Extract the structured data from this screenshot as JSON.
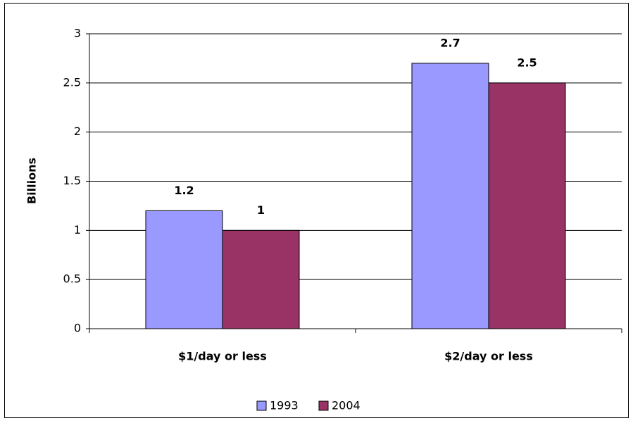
{
  "chart_data": {
    "type": "bar",
    "y_label": "Billions",
    "categories": [
      "$1/day or less",
      "$2/day or less"
    ],
    "series": [
      {
        "name": "1993",
        "color": "#9999ff",
        "values": [
          1.2,
          2.7
        ]
      },
      {
        "name": "2004",
        "color": "#993366",
        "values": [
          1,
          2.5
        ]
      }
    ],
    "ylim": [
      0,
      3
    ],
    "yticks": [
      0,
      0.5,
      1,
      1.5,
      2,
      2.5,
      3
    ],
    "grid": true,
    "legend": "bottom"
  }
}
